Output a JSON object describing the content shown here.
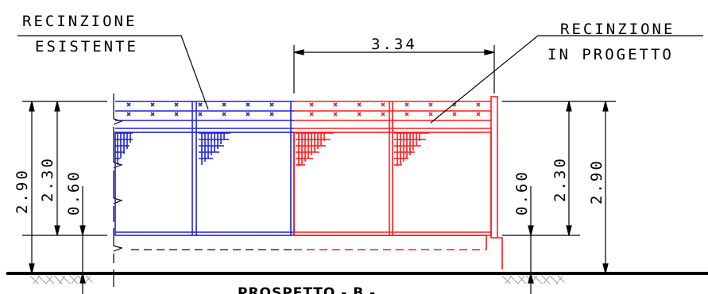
{
  "labels": {
    "existing_line1": "RECINZIONE",
    "existing_line2": "ESISTENTE",
    "project_line1": "RECINZIONE",
    "project_line2": "IN PROGETTO",
    "view_title": "PROSPETTO - B -"
  },
  "dimensions": {
    "width": "3.34",
    "left_total_height": "2.90",
    "left_fence_height": "2.30",
    "left_base_height": "0.60",
    "right_base_height": "0.60",
    "right_fence_height": "2.30",
    "right_total_height": "2.90"
  },
  "colors": {
    "existing": "#1f1fe0",
    "project": "#ff1a1a",
    "lines": "#000000"
  }
}
